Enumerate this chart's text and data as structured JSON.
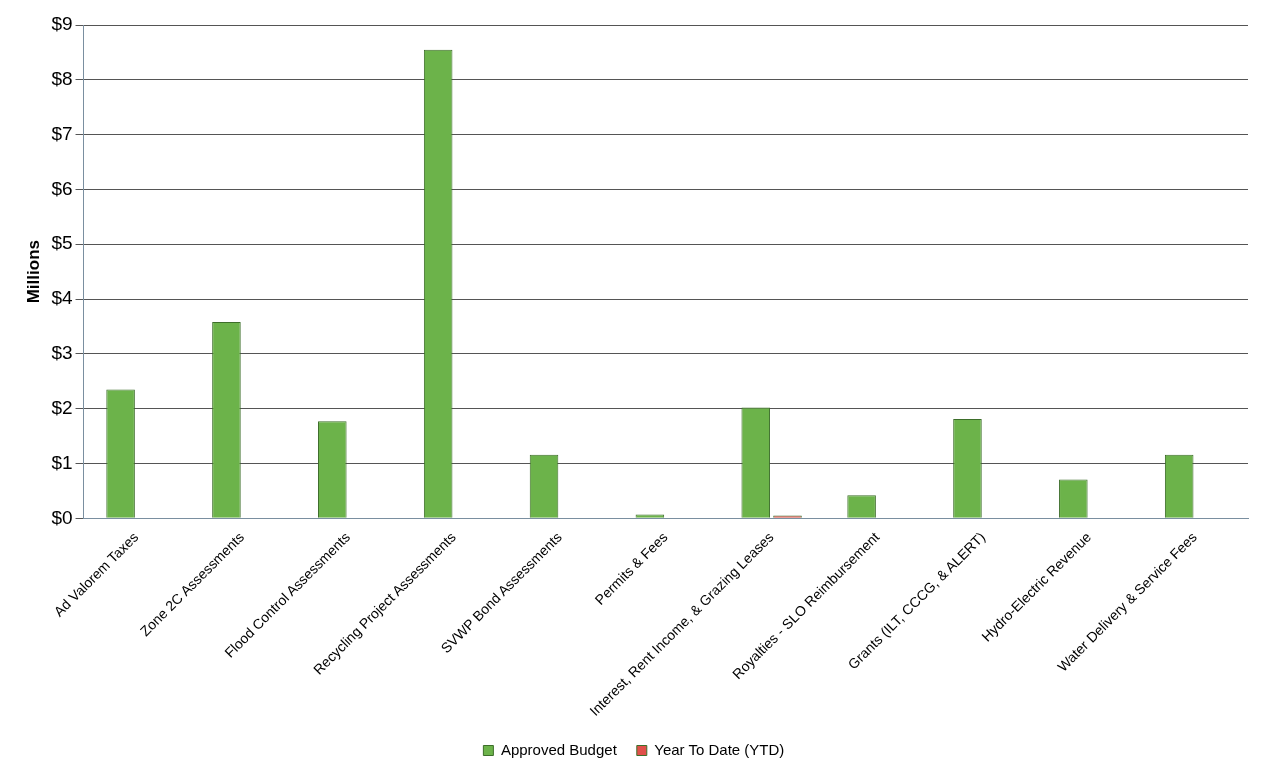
{
  "chart_data": {
    "type": "bar",
    "ylabel": "Millions",
    "categories": [
      "Ad Valorem Taxes",
      "Zone 2C Assessments",
      "Flood Control Assessments",
      "Recycling Project Assessments",
      "SVWP Bond Assessments",
      "Permits & Fees",
      "Interest, Rent Income, & Grazing Leases",
      "Royalties - SLO Reimbursement",
      "Grants (ILT, CCCG, & ALERT)",
      "Hydro-Electric Revenue",
      "Water Delivery & Service Fees"
    ],
    "series": [
      {
        "name": "Approved Budget",
        "color": "#6cb34a",
        "values": [
          2.35,
          3.58,
          1.77,
          8.55,
          1.16,
          0.07,
          2.02,
          0.42,
          1.81,
          0.71,
          1.16
        ]
      },
      {
        "name": "Year To Date (YTD)",
        "color": "#e0504a",
        "values": [
          0,
          0,
          0,
          0,
          0,
          0,
          0.05,
          0,
          0,
          0,
          0
        ]
      }
    ],
    "ylim": [
      0,
      9
    ],
    "yticks": [
      {
        "value": 0,
        "label": "$0"
      },
      {
        "value": 1,
        "label": "$1"
      },
      {
        "value": 2,
        "label": "$2"
      },
      {
        "value": 3,
        "label": "$3"
      },
      {
        "value": 4,
        "label": "$4"
      },
      {
        "value": 5,
        "label": "$5"
      },
      {
        "value": 6,
        "label": "$6"
      },
      {
        "value": 7,
        "label": "$7"
      },
      {
        "value": 8,
        "label": "$8"
      },
      {
        "value": 9,
        "label": "$9"
      }
    ],
    "grid": "y",
    "legend": "bottom"
  }
}
